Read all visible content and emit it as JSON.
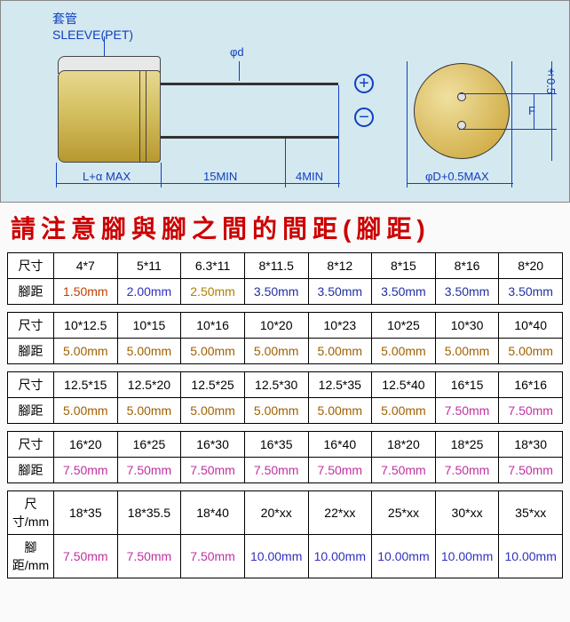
{
  "diagram": {
    "sleeve_label_cn": "套管",
    "sleeve_label_en": "SLEEVE(PET)",
    "phi_d": "φd",
    "plus": "+",
    "minus": "−",
    "dim_L": "L+α MAX",
    "dim_15": "15MIN",
    "dim_4": "4MIN",
    "dim_D": "φD+0.5MAX",
    "dim_05": "±0.5",
    "dim_F": "F",
    "colors": {
      "blueprint_bg": "#d4e8f0",
      "cap_body": "#d4c060",
      "dim_line": "#1040c0",
      "warning": "#cc0000"
    }
  },
  "warning_text": "請注意腳與腳之間的間距(腳距)",
  "row_labels": {
    "size": "尺寸",
    "pitch": "腳距",
    "size_mm": "尺寸/mm",
    "pitch_mm": "腳距/mm"
  },
  "pitch_colors": {
    "1.50mm": "#c04000",
    "2.00mm": "#3030c0",
    "2.50mm": "#b08000",
    "3.50mm": "#2030a0",
    "5.00mm": "#a06000",
    "7.50mm": "#c030a0",
    "10.00mm": "#3030c0"
  },
  "tables": [
    {
      "size_label": "尺寸",
      "pitch_label": "腳距",
      "sizes": [
        "4*7",
        "5*11",
        "6.3*11",
        "8*11.5",
        "8*12",
        "8*15",
        "8*16",
        "8*20"
      ],
      "pitches": [
        "1.50mm",
        "2.00mm",
        "2.50mm",
        "3.50mm",
        "3.50mm",
        "3.50mm",
        "3.50mm",
        "3.50mm"
      ]
    },
    {
      "size_label": "尺寸",
      "pitch_label": "腳距",
      "sizes": [
        "10*12.5",
        "10*15",
        "10*16",
        "10*20",
        "10*23",
        "10*25",
        "10*30",
        "10*40"
      ],
      "pitches": [
        "5.00mm",
        "5.00mm",
        "5.00mm",
        "5.00mm",
        "5.00mm",
        "5.00mm",
        "5.00mm",
        "5.00mm"
      ]
    },
    {
      "size_label": "尺寸",
      "pitch_label": "腳距",
      "sizes": [
        "12.5*15",
        "12.5*20",
        "12.5*25",
        "12.5*30",
        "12.5*35",
        "12.5*40",
        "16*15",
        "16*16"
      ],
      "pitches": [
        "5.00mm",
        "5.00mm",
        "5.00mm",
        "5.00mm",
        "5.00mm",
        "5.00mm",
        "7.50mm",
        "7.50mm"
      ]
    },
    {
      "size_label": "尺寸",
      "pitch_label": "腳距",
      "sizes": [
        "16*20",
        "16*25",
        "16*30",
        "16*35",
        "16*40",
        "18*20",
        "18*25",
        "18*30"
      ],
      "pitches": [
        "7.50mm",
        "7.50mm",
        "7.50mm",
        "7.50mm",
        "7.50mm",
        "7.50mm",
        "7.50mm",
        "7.50mm"
      ]
    },
    {
      "size_label": "尺寸/mm",
      "pitch_label": "腳距/mm",
      "sizes": [
        "18*35",
        "18*35.5",
        "18*40",
        "20*xx",
        "22*xx",
        "25*xx",
        "30*xx",
        "35*xx"
      ],
      "pitches": [
        "7.50mm",
        "7.50mm",
        "7.50mm",
        "10.00mm",
        "10.00mm",
        "10.00mm",
        "10.00mm",
        "10.00mm"
      ]
    }
  ]
}
